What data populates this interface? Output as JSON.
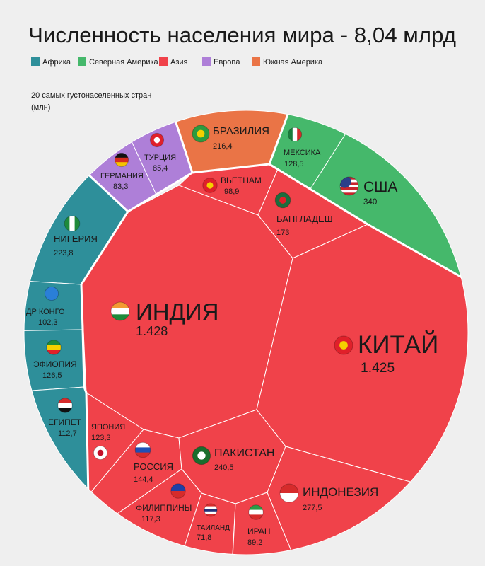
{
  "title": "Численность населения мира - 8,04 млрд",
  "subtitle_line1": "20 самых густонаселенных стран",
  "subtitle_line2": "(млн)",
  "legend": [
    {
      "label": "Африка",
      "color": "#2e8f9a"
    },
    {
      "label": "Северная Америка",
      "color": "#45b86b"
    },
    {
      "label": "Азия",
      "color": "#f0424a"
    },
    {
      "label": "Европа",
      "color": "#ae7fd8"
    },
    {
      "label": "Южная Америка",
      "color": "#ea7446"
    }
  ],
  "chart_data": {
    "type": "voronoi-treemap",
    "title": "Численность населения мира - 8,04 млрд",
    "unit": "млн",
    "items": [
      {
        "id": "brazil",
        "label": "БРАЗИЛИЯ",
        "value_label": "216,4",
        "value": 216.4,
        "continent": "Южная Америка",
        "flag": "brazil-flag-icon"
      },
      {
        "id": "germany",
        "label": "ГЕРМАНИЯ",
        "value_label": "83,3",
        "value": 83.3,
        "continent": "Европа",
        "flag": "germany-flag-icon"
      },
      {
        "id": "turkey",
        "label": "ТУРЦИЯ",
        "value_label": "85,4",
        "value": 85.4,
        "continent": "Европа",
        "flag": "turkey-flag-icon"
      },
      {
        "id": "mexico",
        "label": "МЕКСИКА",
        "value_label": "128,5",
        "value": 128.5,
        "continent": "Северная Америка",
        "flag": "mexico-flag-icon"
      },
      {
        "id": "usa",
        "label": "США",
        "value_label": "340",
        "value": 340,
        "continent": "Северная Америка",
        "flag": "usa-flag-icon"
      },
      {
        "id": "vietnam",
        "label": "ВЬЕТНАМ",
        "value_label": "98,9",
        "value": 98.9,
        "continent": "Азия",
        "flag": "vietnam-flag-icon"
      },
      {
        "id": "bangladesh",
        "label": "БАНГЛАДЕШ",
        "value_label": "173",
        "value": 173,
        "continent": "Азия",
        "flag": "bangladesh-flag-icon"
      },
      {
        "id": "india",
        "label": "ИНДИЯ",
        "value_label": "1.428",
        "value": 1428,
        "continent": "Азия",
        "flag": "india-flag-icon"
      },
      {
        "id": "china",
        "label": "КИТАЙ",
        "value_label": "1.425",
        "value": 1425,
        "continent": "Азия",
        "flag": "china-flag-icon"
      },
      {
        "id": "nigeria",
        "label": "НИГЕРИЯ",
        "value_label": "223,8",
        "value": 223.8,
        "continent": "Африка",
        "flag": "nigeria-flag-icon"
      },
      {
        "id": "drc",
        "label": "ДР КОНГО",
        "value_label": "102,3",
        "value": 102.3,
        "continent": "Африка",
        "flag": "drc-flag-icon"
      },
      {
        "id": "ethiopia",
        "label": "ЭФИОПИЯ",
        "value_label": "126,5",
        "value": 126.5,
        "continent": "Африка",
        "flag": "ethiopia-flag-icon"
      },
      {
        "id": "egypt",
        "label": "ЕГИПЕТ",
        "value_label": "112,7",
        "value": 112.7,
        "continent": "Африка",
        "flag": "egypt-flag-icon"
      },
      {
        "id": "japan",
        "label": "ЯПОНИЯ",
        "value_label": "123,3",
        "value": 123.3,
        "continent": "Азия",
        "flag": "japan-flag-icon"
      },
      {
        "id": "russia",
        "label": "РОССИЯ",
        "value_label": "144,4",
        "value": 144.4,
        "continent": "Азия",
        "flag": "russia-flag-icon"
      },
      {
        "id": "pakistan",
        "label": "ПАКИСТАН",
        "value_label": "240,5",
        "value": 240.5,
        "continent": "Азия",
        "flag": "pakistan-flag-icon"
      },
      {
        "id": "philippines",
        "label": "ФИЛИППИНЫ",
        "value_label": "117,3",
        "value": 117.3,
        "continent": "Азия",
        "flag": "philippines-flag-icon"
      },
      {
        "id": "thailand",
        "label": "ТАИЛАНД",
        "value_label": "71,8",
        "value": 71.8,
        "continent": "Азия",
        "flag": "thailand-flag-icon"
      },
      {
        "id": "iran",
        "label": "ИРАН",
        "value_label": "89,2",
        "value": 89.2,
        "continent": "Азия",
        "flag": "iran-flag-icon"
      },
      {
        "id": "indonesia",
        "label": "ИНДОНЕЗИЯ",
        "value_label": "277,5",
        "value": 277.5,
        "continent": "Азия",
        "flag": "indonesia-flag-icon"
      }
    ]
  }
}
